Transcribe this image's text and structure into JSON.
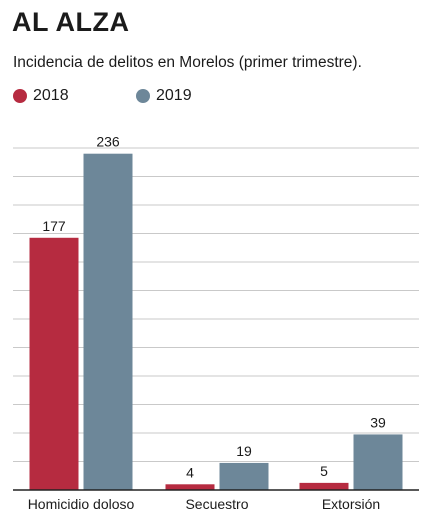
{
  "header": {
    "title": "AL ALZA",
    "subtitle": "Incidencia de delitos en Morelos (primer trimestre)."
  },
  "colors": {
    "series_2018": "#b62b40",
    "series_2019": "#6d8799",
    "grid": "#c9c9c9",
    "axis": "#222222"
  },
  "chart_data": {
    "type": "bar",
    "title": "AL ALZA",
    "subtitle": "Incidencia de delitos en Morelos (primer trimestre).",
    "categories": [
      "Homicidio doloso",
      "Secuestro",
      "Extorsión"
    ],
    "series": [
      {
        "name": "2018",
        "values": [
          177,
          4,
          5
        ]
      },
      {
        "name": "2019",
        "values": [
          236,
          19,
          39
        ]
      }
    ],
    "ylim": [
      0,
      240
    ],
    "grid": true,
    "legend": "top-left",
    "data_labels": true
  }
}
